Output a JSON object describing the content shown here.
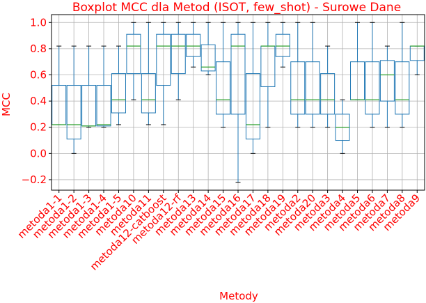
{
  "chart_data": {
    "type": "boxplot",
    "title": "Boxplot MCC dla Metod (ISOT, few_shot) - Surowe Dane",
    "xlabel": "Metody",
    "ylabel": "MCC",
    "ylim": [
      -0.28,
      1.06
    ],
    "yticks": [
      -0.2,
      0.0,
      0.2,
      0.4,
      0.6,
      0.8,
      1.0
    ],
    "ytick_labels": [
      "−0.2",
      "0.0",
      "0.2",
      "0.4",
      "0.6",
      "0.8",
      "1.0"
    ],
    "grid": true,
    "colors": {
      "box": "#1f77b4",
      "median": "#2ca02c",
      "whisker": "#1f77b4",
      "cap": "#000000",
      "grid": "#b0b0b0",
      "text": "#ff0000"
    },
    "categories": [
      "metoda1-1",
      "metoda1-2",
      "metoda1-3",
      "metoda1-4",
      "metoda1-5",
      "metoda10",
      "metoda11",
      "metoda12-catboost",
      "metoda12-rf",
      "metoda13",
      "metoda14",
      "metoda15",
      "metoda16",
      "metoda17",
      "metoda18",
      "metoda19",
      "metoda2",
      "metoda20",
      "metoda3",
      "metoda4",
      "metoda5",
      "metoda6",
      "metoda7",
      "metoda8",
      "metoda9"
    ],
    "boxes": [
      {
        "min": 0.22,
        "q1": 0.22,
        "median": 0.22,
        "q3": 0.52,
        "max": 0.82
      },
      {
        "min": 0.0,
        "q1": 0.11,
        "median": 0.22,
        "q3": 0.52,
        "max": 0.82
      },
      {
        "min": 0.2,
        "q1": 0.21,
        "median": 0.21,
        "q3": 0.52,
        "max": 0.82
      },
      {
        "min": 0.2,
        "q1": 0.21,
        "median": 0.22,
        "q3": 0.52,
        "max": 0.82
      },
      {
        "min": 0.22,
        "q1": 0.31,
        "median": 0.41,
        "q3": 0.61,
        "max": 0.82
      },
      {
        "min": 0.41,
        "q1": 0.61,
        "median": 0.82,
        "q3": 0.91,
        "max": 1.0
      },
      {
        "min": 0.22,
        "q1": 0.31,
        "median": 0.41,
        "q3": 0.61,
        "max": 1.0
      },
      {
        "min": 0.22,
        "q1": 0.52,
        "median": 0.82,
        "q3": 0.91,
        "max": 1.0
      },
      {
        "min": 0.41,
        "q1": 0.61,
        "median": 0.82,
        "q3": 0.91,
        "max": 1.0
      },
      {
        "min": 0.66,
        "q1": 0.74,
        "median": 0.82,
        "q3": 0.91,
        "max": 1.0
      },
      {
        "min": 0.6,
        "q1": 0.63,
        "median": 0.66,
        "q3": 0.83,
        "max": 1.0
      },
      {
        "min": 0.2,
        "q1": 0.3,
        "median": 0.41,
        "q3": 0.7,
        "max": 1.0
      },
      {
        "min": -0.22,
        "q1": 0.3,
        "median": 0.82,
        "q3": 0.91,
        "max": 1.0
      },
      {
        "min": 0.0,
        "q1": 0.11,
        "median": 0.22,
        "q3": 0.61,
        "max": 1.0
      },
      {
        "min": 0.2,
        "q1": 0.51,
        "median": 0.82,
        "q3": 0.82,
        "max": 1.0
      },
      {
        "min": 0.66,
        "q1": 0.74,
        "median": 0.82,
        "q3": 0.91,
        "max": 1.0
      },
      {
        "min": 0.2,
        "q1": 0.3,
        "median": 0.41,
        "q3": 0.7,
        "max": 1.0
      },
      {
        "min": 0.2,
        "q1": 0.3,
        "median": 0.41,
        "q3": 0.7,
        "max": 1.0
      },
      {
        "min": 0.2,
        "q1": 0.3,
        "median": 0.41,
        "q3": 0.61,
        "max": 0.82
      },
      {
        "min": 0.0,
        "q1": 0.1,
        "median": 0.2,
        "q3": 0.3,
        "max": 0.41
      },
      {
        "min": 0.41,
        "q1": 0.41,
        "median": 0.41,
        "q3": 0.7,
        "max": 1.0
      },
      {
        "min": 0.2,
        "q1": 0.3,
        "median": 0.41,
        "q3": 0.7,
        "max": 1.0
      },
      {
        "min": 0.2,
        "q1": 0.4,
        "median": 0.6,
        "q3": 0.71,
        "max": 0.82
      },
      {
        "min": 0.2,
        "q1": 0.3,
        "median": 0.41,
        "q3": 0.7,
        "max": 1.0
      },
      {
        "min": 0.6,
        "q1": 0.71,
        "median": 0.82,
        "q3": 0.82,
        "max": 0.82
      }
    ]
  }
}
